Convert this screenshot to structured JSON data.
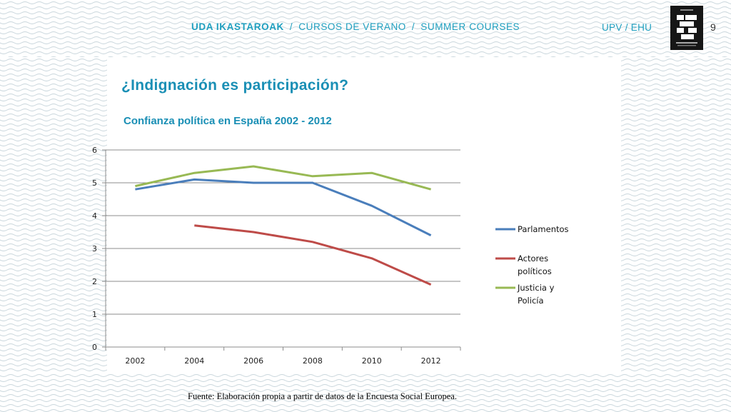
{
  "header": {
    "course_strong": "UDA IKASTAROAK",
    "separator": "/",
    "course_es": "CURSOS DE VERANO",
    "course_en": "SUMMER  COURSES",
    "university": "UPV / EHU",
    "page_number": "9"
  },
  "slide": {
    "title": "¿Indignación es participación?",
    "source": "Fuente: Elaboración propia a partir de datos de la Encuesta Social Europea."
  },
  "colors": {
    "accent": "#1a8fb5",
    "wave": "#c9d6dc"
  },
  "chart_data": {
    "type": "line",
    "title": "Confianza política en España 2002 - 2012",
    "categories": [
      "2002",
      "2004",
      "2006",
      "2008",
      "2010",
      "2012"
    ],
    "ylim": [
      0,
      6
    ],
    "yticks": [
      0,
      1,
      2,
      3,
      4,
      5,
      6
    ],
    "grid": true,
    "legend_position": "right",
    "series": [
      {
        "name": "Parlamentos",
        "color": "#4a7ebb",
        "values": [
          4.8,
          5.1,
          5.0,
          5.0,
          4.3,
          3.4
        ]
      },
      {
        "name": "Actores políticos",
        "legend_lines": [
          "Actores",
          "políticos"
        ],
        "color": "#be4b48",
        "values": [
          null,
          3.7,
          3.5,
          3.2,
          2.7,
          1.9
        ]
      },
      {
        "name": "Justicia y Policía",
        "legend_lines": [
          "Justicia y",
          "Policía"
        ],
        "color": "#98b954",
        "values": [
          4.9,
          5.3,
          5.5,
          5.2,
          5.3,
          4.8
        ]
      }
    ]
  }
}
